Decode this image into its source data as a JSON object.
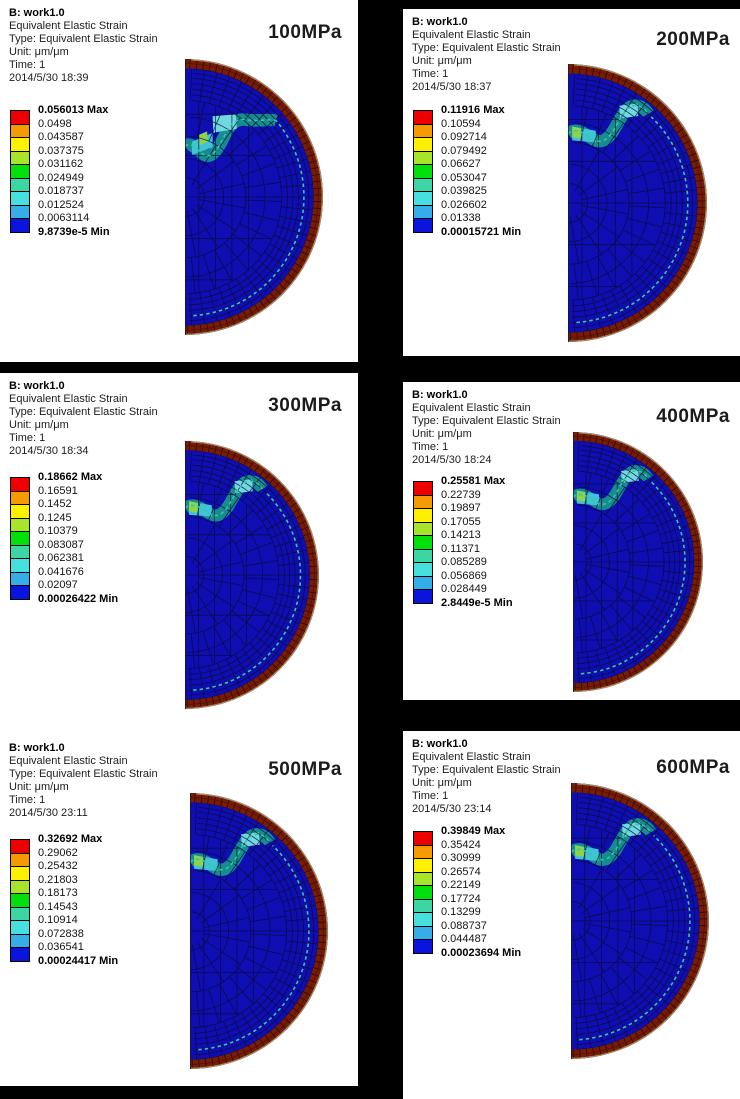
{
  "page": {
    "background": "#000000",
    "panel_background": "#ffffff"
  },
  "legend_colors": [
    "#ee0000",
    "#f59b00",
    "#fff000",
    "#a8e42a",
    "#00e00b",
    "#3bd6a3",
    "#45e0de",
    "#35aee8",
    "#0a14dc"
  ],
  "mesh_colors": {
    "body": "#0e0eb2",
    "element_edge": "#0a0a33",
    "rim": "#7a1c03",
    "rim_tick": "#330b00",
    "rim_midline": "#471106",
    "outline": "#a38f68",
    "contour_line": "#3cc4a4",
    "hotspot_teal": "#16988c",
    "hotspot_cyan_bright": "#6fd8e0",
    "hotspot_cyan_mid": "#3ec4d4",
    "hotspot_green": "#8cd44e"
  },
  "panels": [
    {
      "pressure": "100MPa",
      "header": {
        "title": "B: work1.0",
        "result": "Equivalent Elastic Strain",
        "type": "Type: Equivalent Elastic Strain",
        "unit": "Unit: μm/μm",
        "time": "Time: 1",
        "date": "2014/5/30 18:39"
      },
      "legend_values": [
        "0.056013 Max",
        "0.0498",
        "0.043587",
        "0.037375",
        "0.031162",
        "0.024949",
        "0.018737",
        "0.012524",
        "0.0063114",
        "9.8739e-5 Min"
      ]
    },
    {
      "pressure": "200MPa",
      "header": {
        "title": "B: work1.0",
        "result": "Equivalent Elastic Strain",
        "type": "Type: Equivalent Elastic Strain",
        "unit": "Unit: μm/μm",
        "time": "Time: 1",
        "date": "2014/5/30 18:37"
      },
      "legend_values": [
        "0.11916 Max",
        "0.10594",
        "0.092714",
        "0.079492",
        "0.06627",
        "0.053047",
        "0.039825",
        "0.026602",
        "0.01338",
        "0.00015721 Min"
      ]
    },
    {
      "pressure": "300MPa",
      "header": {
        "title": "B: work1.0",
        "result": "Equivalent Elastic Strain",
        "type": "Type: Equivalent Elastic Strain",
        "unit": "Unit: μm/μm",
        "time": "Time: 1",
        "date": "2014/5/30 18:34"
      },
      "legend_values": [
        "0.18662 Max",
        "0.16591",
        "0.1452",
        "0.1245",
        "0.10379",
        "0.083087",
        "0.062381",
        "0.041676",
        "0.02097",
        "0.00026422 Min"
      ]
    },
    {
      "pressure": "400MPa",
      "header": {
        "title": "B: work1.0",
        "result": "Equivalent Elastic Strain",
        "type": "Type: Equivalent Elastic Strain",
        "unit": "Unit: μm/μm",
        "time": "Time: 1",
        "date": "2014/5/30 18:24"
      },
      "legend_values": [
        "0.25581 Max",
        "0.22739",
        "0.19897",
        "0.17055",
        "0.14213",
        "0.11371",
        "0.085289",
        "0.056869",
        "0.028449",
        "2.8449e-5 Min"
      ]
    },
    {
      "pressure": "500MPa",
      "header": {
        "title": "B: work1.0",
        "result": "Equivalent Elastic Strain",
        "type": "Type: Equivalent Elastic Strain",
        "unit": "Unit: μm/μm",
        "time": "Time: 1",
        "date": "2014/5/30 23:11"
      },
      "legend_values": [
        "0.32692 Max",
        "0.29062",
        "0.25432",
        "0.21803",
        "0.18173",
        "0.14543",
        "0.10914",
        "0.072838",
        "0.036541",
        "0.00024417 Min"
      ]
    },
    {
      "pressure": "600MPa",
      "header": {
        "title": "B: work1.0",
        "result": "Equivalent Elastic Strain",
        "type": "Type: Equivalent Elastic Strain",
        "unit": "Unit: μm/μm",
        "time": "Time: 1",
        "date": "2014/5/30 23:14"
      },
      "legend_values": [
        "0.39849 Max",
        "0.35424",
        "0.30999",
        "0.26574",
        "0.22149",
        "0.17724",
        "0.13299",
        "0.088737",
        "0.044487",
        "0.00023694 Min"
      ]
    }
  ],
  "chart_data": [
    {
      "type": "heatmap",
      "title": "100MPa",
      "legend_title": "Equivalent Elastic Strain",
      "unit": "μm/μm",
      "time": 1,
      "timestamp": "2014/5/30 18:39",
      "max": 0.056013,
      "contour_levels": [
        0.0498,
        0.043587,
        0.037375,
        0.031162,
        0.024949,
        0.018737,
        0.012524,
        0.0063114
      ],
      "min": 9.8739e-05
    },
    {
      "type": "heatmap",
      "title": "200MPa",
      "legend_title": "Equivalent Elastic Strain",
      "unit": "μm/μm",
      "time": 1,
      "timestamp": "2014/5/30 18:37",
      "max": 0.11916,
      "contour_levels": [
        0.10594,
        0.092714,
        0.079492,
        0.06627,
        0.053047,
        0.039825,
        0.026602,
        0.01338
      ],
      "min": 0.00015721
    },
    {
      "type": "heatmap",
      "title": "300MPa",
      "legend_title": "Equivalent Elastic Strain",
      "unit": "μm/μm",
      "time": 1,
      "timestamp": "2014/5/30 18:34",
      "max": 0.18662,
      "contour_levels": [
        0.16591,
        0.1452,
        0.1245,
        0.10379,
        0.083087,
        0.062381,
        0.041676,
        0.02097
      ],
      "min": 0.00026422
    },
    {
      "type": "heatmap",
      "title": "400MPa",
      "legend_title": "Equivalent Elastic Strain",
      "unit": "μm/μm",
      "time": 1,
      "timestamp": "2014/5/30 18:24",
      "max": 0.25581,
      "contour_levels": [
        0.22739,
        0.19897,
        0.17055,
        0.14213,
        0.11371,
        0.085289,
        0.056869,
        0.028449
      ],
      "min": 2.8449e-05
    },
    {
      "type": "heatmap",
      "title": "500MPa",
      "legend_title": "Equivalent Elastic Strain",
      "unit": "μm/μm",
      "time": 1,
      "timestamp": "2014/5/30 23:11",
      "max": 0.32692,
      "contour_levels": [
        0.29062,
        0.25432,
        0.21803,
        0.18173,
        0.14543,
        0.10914,
        0.072838,
        0.036541
      ],
      "min": 0.00024417
    },
    {
      "type": "heatmap",
      "title": "600MPa",
      "legend_title": "Equivalent Elastic Strain",
      "unit": "μm/μm",
      "time": 1,
      "timestamp": "2014/5/30 23:14",
      "max": 0.39849,
      "contour_levels": [
        0.35424,
        0.30999,
        0.26574,
        0.22149,
        0.17724,
        0.13299,
        0.088737,
        0.044487
      ],
      "min": 0.00023694
    }
  ]
}
